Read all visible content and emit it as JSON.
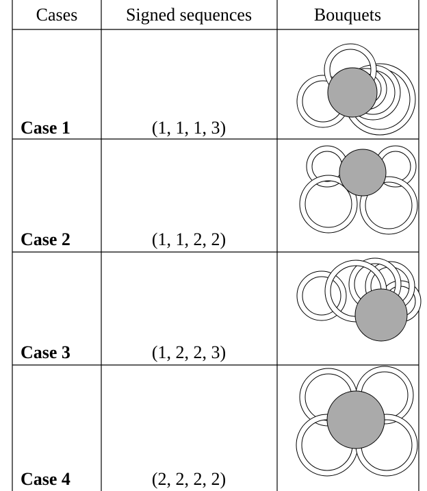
{
  "table": {
    "header": [
      "Cases",
      "Signed sequences",
      "Bouquets"
    ],
    "rows": [
      {
        "case": "Case 1",
        "sequence": "(1, 1, 1, 3)"
      },
      {
        "case": "Case 2",
        "sequence": "(1, 1, 2, 2)"
      },
      {
        "case": "Case 3",
        "sequence": "(1, 2, 2, 3)"
      },
      {
        "case": "Case 4",
        "sequence": "(2, 2, 2, 2)"
      }
    ]
  }
}
